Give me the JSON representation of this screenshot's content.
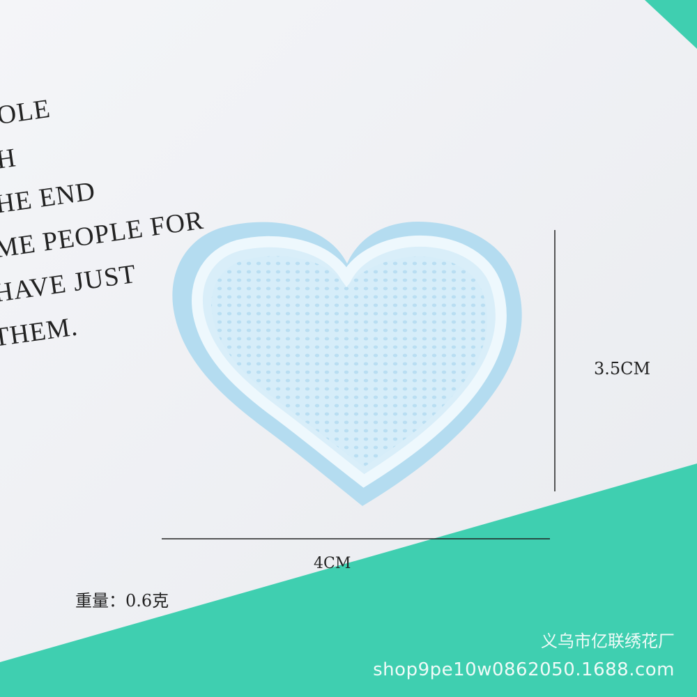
{
  "card_lines": [
    "OLE",
    "H",
    "HE END",
    "ME PEOPLE FOR",
    "HAVE JUST",
    "THEM."
  ],
  "dimensions": {
    "height": "3.5CM",
    "width": "4CM"
  },
  "weight": "重量：0.6克",
  "watermark": {
    "name": "义乌市亿联绣花厂",
    "url": "shop9pe10w0862050.1688.com"
  },
  "colors": {
    "background": "#3fcfb0",
    "card": "#f2f3f6",
    "felt": "#b4dcf0",
    "stitch": "#d9eef9"
  }
}
